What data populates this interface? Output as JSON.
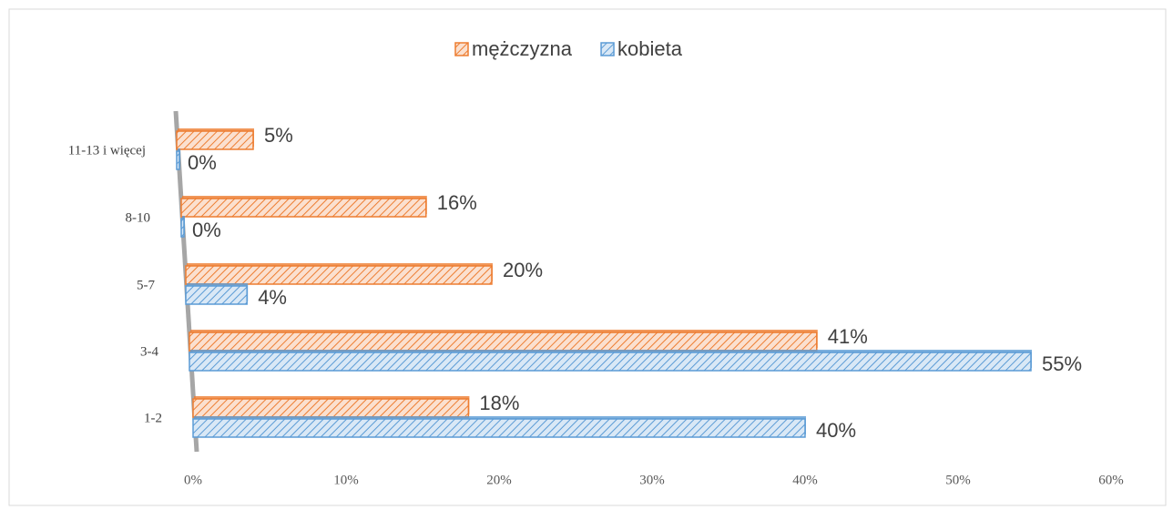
{
  "chart_data": {
    "type": "bar",
    "orientation": "horizontal",
    "categories": [
      "1-2",
      "3-4",
      "5-7",
      "8-10",
      "11-13 i więcej"
    ],
    "series": [
      {
        "name": "mężczyzna",
        "color": "#ed7d31",
        "values": [
          18,
          41,
          20,
          16,
          5
        ],
        "value_labels": [
          "18%",
          "41%",
          "20%",
          "16%",
          "5%"
        ]
      },
      {
        "name": "kobieta",
        "color": "#5b9bd5",
        "values": [
          40,
          55,
          4,
          0,
          0
        ],
        "value_labels": [
          "40%",
          "55%",
          "4%",
          "0%",
          "0%"
        ]
      }
    ],
    "xlim": [
      0,
      60
    ],
    "xticks": [
      {
        "value": 0,
        "label": "0%"
      },
      {
        "value": 10,
        "label": "10%"
      },
      {
        "value": 20,
        "label": "20%"
      },
      {
        "value": 30,
        "label": "30%"
      },
      {
        "value": 40,
        "label": "40%"
      },
      {
        "value": 50,
        "label": "50%"
      },
      {
        "value": 60,
        "label": "60%"
      }
    ],
    "legend": "top"
  }
}
